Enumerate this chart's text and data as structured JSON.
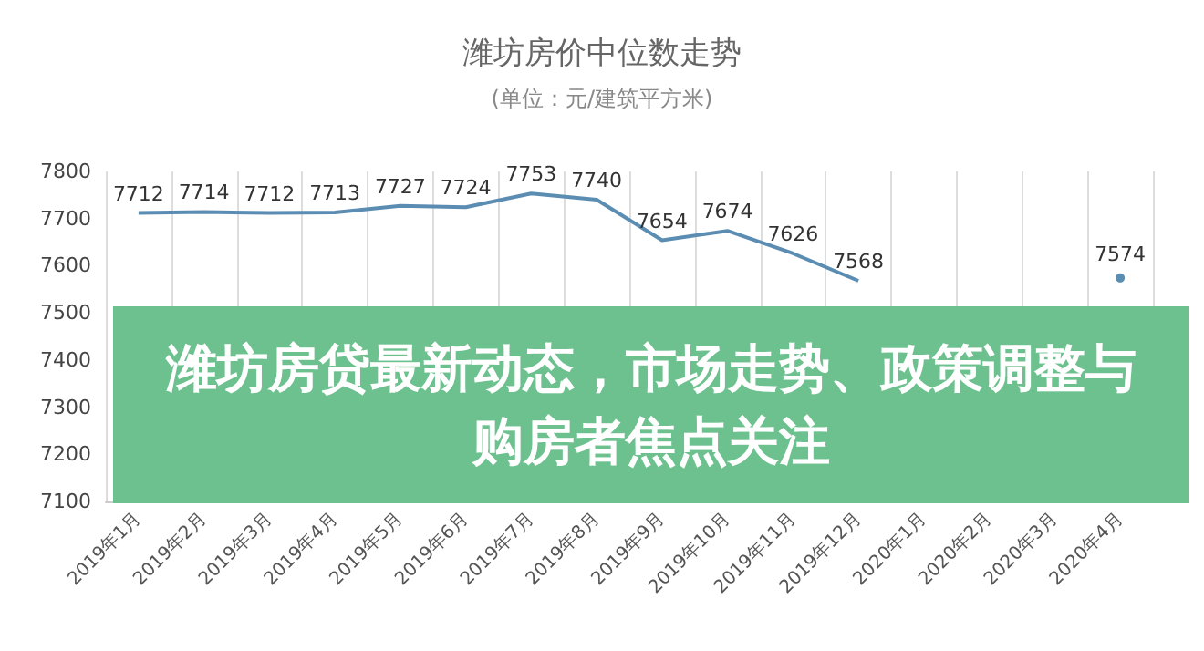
{
  "chart_data": {
    "type": "line",
    "title": "潍坊房价中位数走势",
    "subtitle": "(单位：元/建筑平方米)",
    "categories": [
      "2019年1月",
      "2019年2月",
      "2019年3月",
      "2019年4月",
      "2019年5月",
      "2019年6月",
      "2019年7月",
      "2019年8月",
      "2019年9月",
      "2019年10月",
      "2019年11月",
      "2019年12月",
      "2020年1月",
      "2020年2月",
      "2020年3月",
      "2020年4月"
    ],
    "series": [
      {
        "color": "#5b8db3",
        "values": [
          7712,
          7714,
          7712,
          7713,
          7727,
          7724,
          7753,
          7740,
          7654,
          7674,
          7626,
          7568,
          null,
          null,
          null,
          7574
        ]
      }
    ],
    "ylim": [
      7100,
      7800
    ],
    "yticks": [
      7100,
      7200,
      7300,
      7400,
      7500,
      7600,
      7700,
      7800
    ],
    "grid": "x",
    "marker": "none",
    "data_labels": true,
    "annotations": [
      "潍坊房贷最新动态，市场走势、政策调整与购房者焦点关注"
    ]
  }
}
